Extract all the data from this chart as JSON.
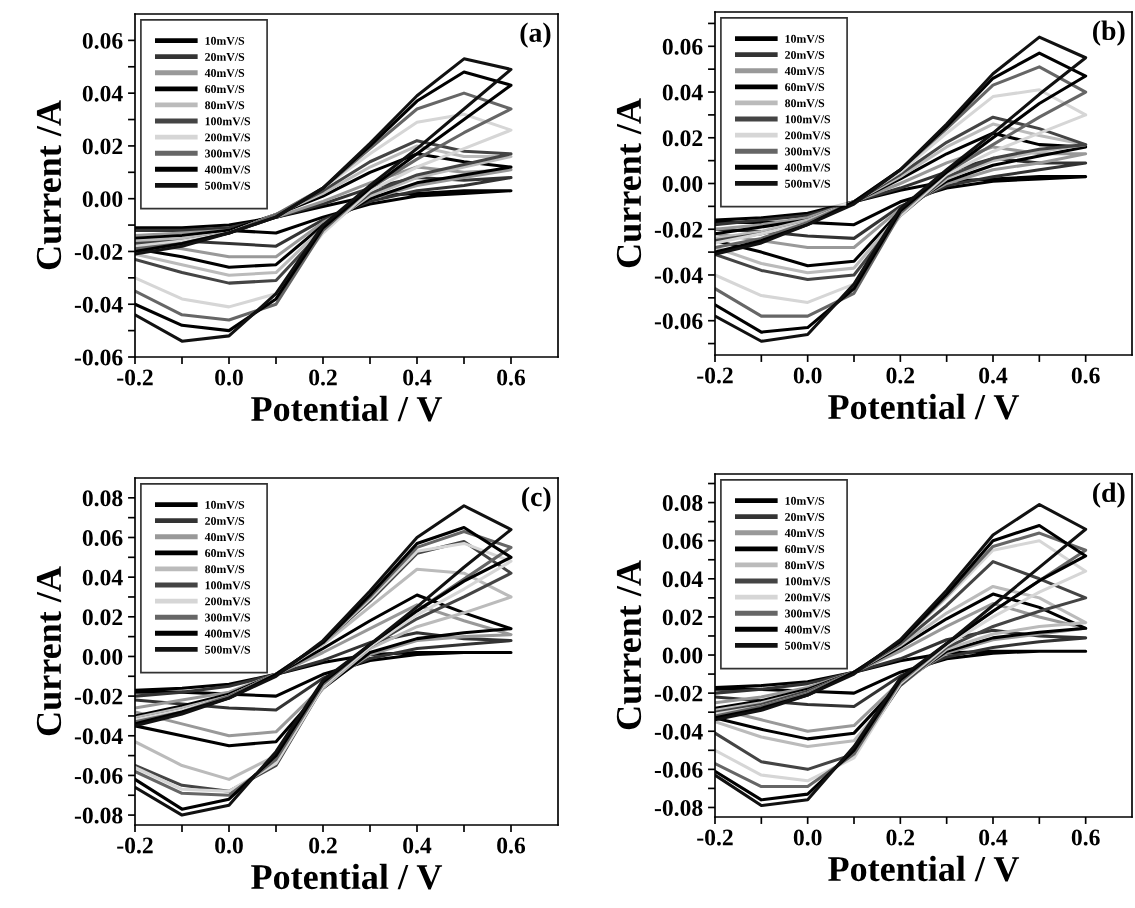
{
  "chart_data": [
    {
      "type": "line",
      "title": "(a)",
      "xlabel": "Potential / V",
      "ylabel": "Current /A",
      "legend": "top left",
      "line_style": "solid",
      "marker": "none",
      "grid": false,
      "x": [
        -0.2,
        -0.1,
        0.0,
        0.1,
        0.2,
        0.3,
        0.4,
        0.5,
        0.6,
        0.5,
        0.4,
        0.3,
        0.2,
        0.1,
        0.0,
        -0.1,
        -0.2
      ],
      "xlim": [
        -0.2,
        0.7
      ],
      "ylim": [
        -0.06,
        0.07
      ],
      "xticks": [
        {
          "value": -0.2,
          "label": "-0.2"
        },
        {
          "value": -0.1,
          "label": null
        },
        {
          "value": 0.0,
          "label": "0.0"
        },
        {
          "value": 0.1,
          "label": null
        },
        {
          "value": 0.2,
          "label": "0.2"
        },
        {
          "value": 0.3,
          "label": null
        },
        {
          "value": 0.4,
          "label": "0.4"
        },
        {
          "value": 0.5,
          "label": null
        },
        {
          "value": 0.6,
          "label": "0.6"
        }
      ],
      "yticks": [
        {
          "value": -0.06,
          "label": "-0.06"
        },
        {
          "value": -0.05,
          "label": null
        },
        {
          "value": -0.04,
          "label": "-0.04"
        },
        {
          "value": -0.03,
          "label": null
        },
        {
          "value": -0.02,
          "label": "-0.02"
        },
        {
          "value": -0.01,
          "label": null
        },
        {
          "value": 0.0,
          "label": "0.00"
        },
        {
          "value": 0.01,
          "label": null
        },
        {
          "value": 0.02,
          "label": "0.02"
        },
        {
          "value": 0.03,
          "label": null
        },
        {
          "value": 0.04,
          "label": "0.04"
        },
        {
          "value": 0.05,
          "label": null
        },
        {
          "value": 0.06,
          "label": "0.06"
        }
      ],
      "series": [
        {
          "name": "10mV/S",
          "color": "#000000",
          "values": [
            -0.011,
            -0.011,
            -0.01,
            -0.007,
            -0.003,
            0.001,
            0.002,
            0.003,
            0.003,
            0.002,
            0.001,
            -0.002,
            -0.007,
            -0.013,
            -0.012,
            -0.012,
            -0.012
          ]
        },
        {
          "name": "20mV/S",
          "color": "#333333",
          "values": [
            -0.012,
            -0.012,
            -0.011,
            -0.007,
            -0.002,
            0.004,
            0.008,
            0.007,
            0.008,
            0.005,
            0.003,
            -0.001,
            -0.008,
            -0.018,
            -0.017,
            -0.016,
            -0.015
          ]
        },
        {
          "name": "40mV/S",
          "color": "#999999",
          "values": [
            -0.014,
            -0.013,
            -0.012,
            -0.007,
            -0.001,
            0.006,
            0.012,
            0.01,
            0.011,
            0.008,
            0.005,
            0.0,
            -0.009,
            -0.022,
            -0.022,
            -0.019,
            -0.017
          ]
        },
        {
          "name": "60mV/S",
          "color": "#000000",
          "values": [
            -0.015,
            -0.014,
            -0.012,
            -0.006,
            0.001,
            0.01,
            0.017,
            0.014,
            0.012,
            0.009,
            0.006,
            0.0,
            -0.01,
            -0.025,
            -0.026,
            -0.022,
            -0.019
          ]
        },
        {
          "name": "80mV/S",
          "color": "#bbbbbb",
          "values": [
            -0.016,
            -0.015,
            -0.013,
            -0.006,
            0.002,
            0.012,
            0.02,
            0.016,
            0.016,
            0.012,
            0.008,
            0.001,
            -0.011,
            -0.028,
            -0.029,
            -0.025,
            -0.021
          ]
        },
        {
          "name": "100mV/S",
          "color": "#444444",
          "values": [
            -0.017,
            -0.016,
            -0.013,
            -0.006,
            0.003,
            0.014,
            0.022,
            0.018,
            0.017,
            0.013,
            0.009,
            0.002,
            -0.012,
            -0.031,
            -0.032,
            -0.028,
            -0.023
          ]
        },
        {
          "name": "200mV/S",
          "color": "#d6d6d6",
          "values": [
            -0.018,
            -0.016,
            -0.013,
            -0.006,
            0.004,
            0.017,
            0.029,
            0.032,
            0.026,
            0.019,
            0.012,
            0.003,
            -0.013,
            -0.036,
            -0.041,
            -0.038,
            -0.03
          ]
        },
        {
          "name": "300mV/S",
          "color": "#666666",
          "values": [
            -0.019,
            -0.017,
            -0.013,
            -0.006,
            0.004,
            0.019,
            0.034,
            0.04,
            0.034,
            0.025,
            0.015,
            0.004,
            -0.012,
            -0.04,
            -0.046,
            -0.044,
            -0.035
          ]
        },
        {
          "name": "400mV/S",
          "color": "#000000",
          "values": [
            -0.02,
            -0.017,
            -0.013,
            -0.007,
            0.004,
            0.02,
            0.037,
            0.048,
            0.043,
            0.03,
            0.017,
            0.004,
            -0.011,
            -0.038,
            -0.05,
            -0.048,
            -0.04
          ]
        },
        {
          "name": "500mV/S",
          "color": "#111111",
          "values": [
            -0.021,
            -0.018,
            -0.013,
            -0.007,
            0.004,
            0.021,
            0.039,
            0.053,
            0.049,
            0.034,
            0.019,
            0.005,
            -0.01,
            -0.036,
            -0.052,
            -0.054,
            -0.044
          ]
        }
      ]
    },
    {
      "type": "line",
      "title": "(b)",
      "xlabel": "Potential / V",
      "ylabel": "Current /A",
      "legend": "top left",
      "line_style": "solid",
      "marker": "none",
      "grid": false,
      "x": [
        -0.2,
        -0.1,
        0.0,
        0.1,
        0.2,
        0.3,
        0.4,
        0.5,
        0.6,
        0.5,
        0.4,
        0.3,
        0.2,
        0.1,
        0.0,
        -0.1,
        -0.2
      ],
      "xlim": [
        -0.2,
        0.7
      ],
      "ylim": [
        -0.075,
        0.075
      ],
      "xticks": [
        {
          "value": -0.2,
          "label": "-0.2"
        },
        {
          "value": -0.1,
          "label": null
        },
        {
          "value": 0.0,
          "label": "0.0"
        },
        {
          "value": 0.1,
          "label": null
        },
        {
          "value": 0.2,
          "label": "0.2"
        },
        {
          "value": 0.3,
          "label": null
        },
        {
          "value": 0.4,
          "label": "0.4"
        },
        {
          "value": 0.5,
          "label": null
        },
        {
          "value": 0.6,
          "label": "0.6"
        }
      ],
      "yticks": [
        {
          "value": -0.07,
          "label": null
        },
        {
          "value": -0.06,
          "label": "-0.06"
        },
        {
          "value": -0.05,
          "label": null
        },
        {
          "value": -0.04,
          "label": "-0.04"
        },
        {
          "value": -0.03,
          "label": null
        },
        {
          "value": -0.02,
          "label": "-0.02"
        },
        {
          "value": -0.01,
          "label": null
        },
        {
          "value": 0.0,
          "label": "0.00"
        },
        {
          "value": 0.01,
          "label": null
        },
        {
          "value": 0.02,
          "label": "0.02"
        },
        {
          "value": 0.03,
          "label": null
        },
        {
          "value": 0.04,
          "label": "0.04"
        },
        {
          "value": 0.05,
          "label": null
        },
        {
          "value": 0.06,
          "label": "0.06"
        },
        {
          "value": 0.07,
          "label": null
        }
      ],
      "series": [
        {
          "name": "10mV/S",
          "color": "#000000",
          "values": [
            -0.016,
            -0.015,
            -0.013,
            -0.008,
            -0.003,
            0.001,
            0.002,
            0.003,
            0.003,
            0.002,
            0.001,
            -0.002,
            -0.008,
            -0.018,
            -0.017,
            -0.017,
            -0.017
          ]
        },
        {
          "name": "20mV/S",
          "color": "#333333",
          "values": [
            -0.018,
            -0.016,
            -0.014,
            -0.008,
            -0.002,
            0.005,
            0.011,
            0.009,
            0.009,
            0.006,
            0.003,
            -0.001,
            -0.01,
            -0.024,
            -0.023,
            -0.021,
            -0.02
          ]
        },
        {
          "name": "40mV/S",
          "color": "#999999",
          "values": [
            -0.02,
            -0.018,
            -0.015,
            -0.008,
            0.0,
            0.009,
            0.016,
            0.013,
            0.013,
            0.009,
            0.006,
            0.0,
            -0.011,
            -0.028,
            -0.028,
            -0.025,
            -0.022
          ]
        },
        {
          "name": "60mV/S",
          "color": "#000000",
          "values": [
            -0.022,
            -0.019,
            -0.016,
            -0.008,
            0.002,
            0.013,
            0.022,
            0.017,
            0.016,
            0.012,
            0.008,
            0.001,
            -0.012,
            -0.034,
            -0.036,
            -0.03,
            -0.025
          ]
        },
        {
          "name": "80mV/S",
          "color": "#bbbbbb",
          "values": [
            -0.024,
            -0.021,
            -0.016,
            -0.008,
            0.003,
            0.016,
            0.026,
            0.021,
            0.017,
            0.014,
            0.01,
            0.002,
            -0.013,
            -0.037,
            -0.039,
            -0.035,
            -0.028
          ]
        },
        {
          "name": "100mV/S",
          "color": "#444444",
          "values": [
            -0.025,
            -0.022,
            -0.017,
            -0.008,
            0.004,
            0.018,
            0.029,
            0.024,
            0.017,
            0.015,
            0.011,
            0.003,
            -0.014,
            -0.04,
            -0.042,
            -0.038,
            -0.031
          ]
        },
        {
          "name": "200mV/S",
          "color": "#d6d6d6",
          "values": [
            -0.026,
            -0.022,
            -0.017,
            -0.008,
            0.005,
            0.022,
            0.038,
            0.041,
            0.03,
            0.022,
            0.014,
            0.004,
            -0.014,
            -0.044,
            -0.052,
            -0.049,
            -0.04
          ]
        },
        {
          "name": "300mV/S",
          "color": "#666666",
          "values": [
            -0.028,
            -0.024,
            -0.017,
            -0.008,
            0.006,
            0.024,
            0.043,
            0.051,
            0.04,
            0.029,
            0.017,
            0.005,
            -0.013,
            -0.048,
            -0.058,
            -0.058,
            -0.046
          ]
        },
        {
          "name": "400mV/S",
          "color": "#000000",
          "values": [
            -0.03,
            -0.025,
            -0.018,
            -0.008,
            0.006,
            0.025,
            0.046,
            0.057,
            0.047,
            0.035,
            0.02,
            0.005,
            -0.012,
            -0.046,
            -0.063,
            -0.065,
            -0.053
          ]
        },
        {
          "name": "500mV/S",
          "color": "#111111",
          "values": [
            -0.031,
            -0.026,
            -0.018,
            -0.009,
            0.006,
            0.026,
            0.048,
            0.064,
            0.055,
            0.039,
            0.022,
            0.006,
            -0.011,
            -0.044,
            -0.066,
            -0.069,
            -0.058
          ]
        }
      ]
    },
    {
      "type": "line",
      "title": "(c)",
      "xlabel": "Potential / V",
      "ylabel": "Current /A",
      "legend": "top left",
      "line_style": "solid",
      "marker": "none",
      "grid": false,
      "x": [
        -0.2,
        -0.1,
        0.0,
        0.1,
        0.2,
        0.3,
        0.4,
        0.5,
        0.6,
        0.5,
        0.4,
        0.3,
        0.2,
        0.1,
        0.0,
        -0.1,
        -0.2
      ],
      "xlim": [
        -0.2,
        0.7
      ],
      "ylim": [
        -0.085,
        0.09
      ],
      "xticks": [
        {
          "value": -0.2,
          "label": "-0.2"
        },
        {
          "value": -0.1,
          "label": null
        },
        {
          "value": 0.0,
          "label": "0.0"
        },
        {
          "value": 0.1,
          "label": null
        },
        {
          "value": 0.2,
          "label": "0.2"
        },
        {
          "value": 0.3,
          "label": null
        },
        {
          "value": 0.4,
          "label": "0.4"
        },
        {
          "value": 0.5,
          "label": null
        },
        {
          "value": 0.6,
          "label": "0.6"
        }
      ],
      "yticks": [
        {
          "value": -0.08,
          "label": "-0.08"
        },
        {
          "value": -0.07,
          "label": null
        },
        {
          "value": -0.06,
          "label": "-0.06"
        },
        {
          "value": -0.05,
          "label": null
        },
        {
          "value": -0.04,
          "label": "-0.04"
        },
        {
          "value": -0.03,
          "label": null
        },
        {
          "value": -0.02,
          "label": "-0.02"
        },
        {
          "value": -0.01,
          "label": null
        },
        {
          "value": 0.0,
          "label": "0.00"
        },
        {
          "value": 0.01,
          "label": null
        },
        {
          "value": 0.02,
          "label": "0.02"
        },
        {
          "value": 0.03,
          "label": null
        },
        {
          "value": 0.04,
          "label": "0.04"
        },
        {
          "value": 0.05,
          "label": null
        },
        {
          "value": 0.06,
          "label": "0.06"
        },
        {
          "value": 0.07,
          "label": null
        },
        {
          "value": 0.08,
          "label": "0.08"
        }
      ],
      "series": [
        {
          "name": "10mV/S",
          "color": "#000000",
          "values": [
            -0.017,
            -0.016,
            -0.014,
            -0.009,
            -0.003,
            0.001,
            0.002,
            0.002,
            0.002,
            0.002,
            0.001,
            -0.002,
            -0.009,
            -0.02,
            -0.019,
            -0.018,
            -0.018
          ]
        },
        {
          "name": "20mV/S",
          "color": "#333333",
          "values": [
            -0.02,
            -0.018,
            -0.015,
            -0.009,
            -0.002,
            0.007,
            0.012,
            0.009,
            0.008,
            0.006,
            0.004,
            -0.001,
            -0.011,
            -0.027,
            -0.026,
            -0.024,
            -0.022
          ]
        },
        {
          "name": "40mV/S",
          "color": "#999999",
          "values": [
            -0.026,
            -0.022,
            -0.018,
            -0.009,
            0.002,
            0.014,
            0.026,
            0.018,
            0.011,
            0.01,
            0.008,
            0.001,
            -0.015,
            -0.038,
            -0.04,
            -0.034,
            -0.028
          ]
        },
        {
          "name": "60mV/S",
          "color": "#000000",
          "values": [
            -0.03,
            -0.025,
            -0.019,
            -0.009,
            0.004,
            0.018,
            0.031,
            0.022,
            0.014,
            0.012,
            0.009,
            0.002,
            -0.016,
            -0.043,
            -0.045,
            -0.04,
            -0.035
          ]
        },
        {
          "name": "80mV/S",
          "color": "#bbbbbb",
          "values": [
            -0.031,
            -0.026,
            -0.02,
            -0.009,
            0.006,
            0.025,
            0.044,
            0.042,
            0.03,
            0.022,
            0.015,
            0.004,
            -0.016,
            -0.05,
            -0.062,
            -0.055,
            -0.043
          ]
        },
        {
          "name": "100mV/S",
          "color": "#444444",
          "values": [
            -0.032,
            -0.027,
            -0.02,
            -0.009,
            0.007,
            0.028,
            0.052,
            0.058,
            0.042,
            0.03,
            0.019,
            0.005,
            -0.015,
            -0.055,
            -0.068,
            -0.065,
            -0.055
          ]
        },
        {
          "name": "200mV/S",
          "color": "#d6d6d6",
          "values": [
            -0.032,
            -0.027,
            -0.02,
            -0.009,
            0.007,
            0.029,
            0.053,
            0.057,
            0.048,
            0.034,
            0.021,
            0.005,
            -0.015,
            -0.054,
            -0.068,
            -0.067,
            -0.056
          ]
        },
        {
          "name": "300mV/S",
          "color": "#666666",
          "values": [
            -0.033,
            -0.028,
            -0.02,
            -0.009,
            0.007,
            0.03,
            0.055,
            0.063,
            0.055,
            0.039,
            0.023,
            0.006,
            -0.014,
            -0.052,
            -0.07,
            -0.069,
            -0.058
          ]
        },
        {
          "name": "400mV/S",
          "color": "#000000",
          "values": [
            -0.034,
            -0.028,
            -0.021,
            -0.009,
            0.007,
            0.031,
            0.057,
            0.065,
            0.05,
            0.038,
            0.023,
            0.006,
            -0.013,
            -0.05,
            -0.072,
            -0.077,
            -0.062
          ]
        },
        {
          "name": "500mV/S",
          "color": "#111111",
          "values": [
            -0.035,
            -0.029,
            -0.021,
            -0.01,
            0.008,
            0.033,
            0.06,
            0.076,
            0.064,
            0.045,
            0.025,
            0.006,
            -0.012,
            -0.048,
            -0.075,
            -0.08,
            -0.066
          ]
        }
      ]
    },
    {
      "type": "line",
      "title": "(d)",
      "xlabel": "Potential / V",
      "ylabel": "Current /A",
      "legend": "top left",
      "line_style": "solid",
      "marker": "none",
      "grid": false,
      "x": [
        -0.2,
        -0.1,
        0.0,
        0.1,
        0.2,
        0.3,
        0.4,
        0.5,
        0.6,
        0.5,
        0.4,
        0.3,
        0.2,
        0.1,
        0.0,
        -0.1,
        -0.2
      ],
      "xlim": [
        -0.2,
        0.7
      ],
      "ylim": [
        -0.085,
        0.095
      ],
      "xticks": [
        {
          "value": -0.2,
          "label": "-0.2"
        },
        {
          "value": -0.1,
          "label": null
        },
        {
          "value": 0.0,
          "label": "0.0"
        },
        {
          "value": 0.1,
          "label": null
        },
        {
          "value": 0.2,
          "label": "0.2"
        },
        {
          "value": 0.3,
          "label": null
        },
        {
          "value": 0.4,
          "label": "0.4"
        },
        {
          "value": 0.5,
          "label": null
        },
        {
          "value": 0.6,
          "label": "0.6"
        }
      ],
      "yticks": [
        {
          "value": -0.08,
          "label": "-0.08"
        },
        {
          "value": -0.07,
          "label": null
        },
        {
          "value": -0.06,
          "label": "-0.06"
        },
        {
          "value": -0.05,
          "label": null
        },
        {
          "value": -0.04,
          "label": "-0.04"
        },
        {
          "value": -0.03,
          "label": null
        },
        {
          "value": -0.02,
          "label": "-0.02"
        },
        {
          "value": -0.01,
          "label": null
        },
        {
          "value": 0.0,
          "label": "0.00"
        },
        {
          "value": 0.01,
          "label": null
        },
        {
          "value": 0.02,
          "label": "0.02"
        },
        {
          "value": 0.03,
          "label": null
        },
        {
          "value": 0.04,
          "label": "0.04"
        },
        {
          "value": 0.05,
          "label": null
        },
        {
          "value": 0.06,
          "label": "0.06"
        },
        {
          "value": 0.07,
          "label": null
        },
        {
          "value": 0.08,
          "label": "0.08"
        },
        {
          "value": 0.09,
          "label": null
        }
      ],
      "series": [
        {
          "name": "10mV/S",
          "color": "#000000",
          "values": [
            -0.017,
            -0.016,
            -0.014,
            -0.009,
            -0.003,
            0.001,
            0.002,
            0.002,
            0.002,
            0.002,
            0.001,
            -0.002,
            -0.009,
            -0.02,
            -0.019,
            -0.018,
            -0.018
          ]
        },
        {
          "name": "20mV/S",
          "color": "#333333",
          "values": [
            -0.02,
            -0.018,
            -0.015,
            -0.009,
            -0.002,
            0.008,
            0.013,
            0.01,
            0.009,
            0.007,
            0.004,
            -0.001,
            -0.011,
            -0.027,
            -0.026,
            -0.024,
            -0.022
          ]
        },
        {
          "name": "40mV/S",
          "color": "#999999",
          "values": [
            -0.025,
            -0.022,
            -0.017,
            -0.009,
            0.002,
            0.015,
            0.027,
            0.02,
            0.014,
            0.011,
            0.008,
            0.001,
            -0.014,
            -0.037,
            -0.04,
            -0.034,
            -0.028
          ]
        },
        {
          "name": "60mV/S",
          "color": "#000000",
          "values": [
            -0.028,
            -0.024,
            -0.018,
            -0.009,
            0.004,
            0.019,
            0.032,
            0.025,
            0.014,
            0.012,
            0.009,
            0.002,
            -0.015,
            -0.041,
            -0.044,
            -0.039,
            -0.033
          ]
        },
        {
          "name": "80mV/S",
          "color": "#bbbbbb",
          "values": [
            -0.029,
            -0.025,
            -0.019,
            -0.009,
            0.005,
            0.022,
            0.036,
            0.03,
            0.017,
            0.015,
            0.011,
            0.003,
            -0.016,
            -0.045,
            -0.048,
            -0.043,
            -0.035
          ]
        },
        {
          "name": "100mV/S",
          "color": "#444444",
          "values": [
            -0.03,
            -0.026,
            -0.019,
            -0.009,
            0.006,
            0.026,
            0.049,
            0.04,
            0.03,
            0.023,
            0.015,
            0.004,
            -0.016,
            -0.052,
            -0.06,
            -0.056,
            -0.041
          ]
        },
        {
          "name": "200mV/S",
          "color": "#d6d6d6",
          "values": [
            -0.031,
            -0.027,
            -0.02,
            -0.009,
            0.007,
            0.03,
            0.055,
            0.06,
            0.044,
            0.033,
            0.02,
            0.005,
            -0.015,
            -0.054,
            -0.066,
            -0.063,
            -0.05
          ]
        },
        {
          "name": "300mV/S",
          "color": "#666666",
          "values": [
            -0.032,
            -0.027,
            -0.02,
            -0.009,
            0.007,
            0.031,
            0.057,
            0.064,
            0.055,
            0.039,
            0.023,
            0.006,
            -0.014,
            -0.052,
            -0.069,
            -0.069,
            -0.057
          ]
        },
        {
          "name": "400mV/S",
          "color": "#000000",
          "values": [
            -0.033,
            -0.028,
            -0.021,
            -0.009,
            0.007,
            0.032,
            0.06,
            0.068,
            0.052,
            0.039,
            0.023,
            0.006,
            -0.013,
            -0.05,
            -0.073,
            -0.076,
            -0.061
          ]
        },
        {
          "name": "500mV/S",
          "color": "#111111",
          "values": [
            -0.034,
            -0.029,
            -0.021,
            -0.01,
            0.008,
            0.034,
            0.063,
            0.079,
            0.066,
            0.046,
            0.026,
            0.006,
            -0.012,
            -0.048,
            -0.076,
            -0.079,
            -0.063
          ]
        }
      ]
    }
  ]
}
